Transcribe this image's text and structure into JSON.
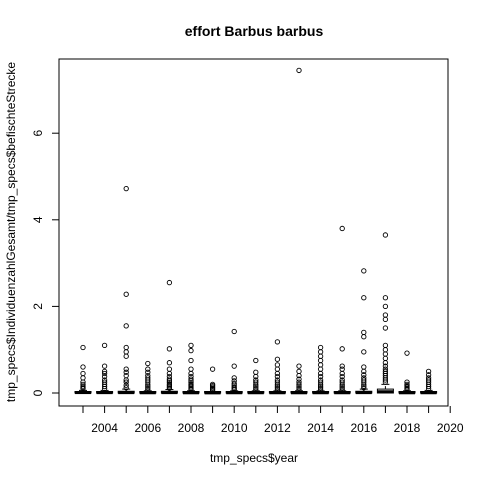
{
  "chart_data": {
    "type": "boxplot",
    "title": "effort Barbus barbus",
    "xlabel": "tmp_specs$year",
    "ylabel": "tmp_specs$IndividuenzahlGesamt/tmp_specs$befischteStrecke",
    "ylim": [
      -0.3,
      7.7
    ],
    "yticks": [
      0,
      2,
      4,
      6
    ],
    "xticks": [
      "2004",
      "2006",
      "2008",
      "2010",
      "2012",
      "2014",
      "2016",
      "2018",
      "2020"
    ],
    "grid": false,
    "legend": "none",
    "categories": [
      "2003",
      "2004",
      "2005",
      "2006",
      "2007",
      "2008",
      "2009",
      "2010",
      "2011",
      "2012",
      "2013",
      "2014",
      "2015",
      "2016",
      "2017",
      "2018",
      "2019",
      "2020"
    ],
    "boxes": [
      {
        "year": "2003",
        "q1": 0,
        "median": 0.01,
        "q3": 0.03,
        "whisker_high": 0.06,
        "outliers": [
          0.1,
          0.13,
          0.16,
          0.2,
          0.25,
          0.35,
          0.45,
          0.6,
          1.05
        ]
      },
      {
        "year": "2004",
        "q1": 0,
        "median": 0.01,
        "q3": 0.03,
        "whisker_high": 0.06,
        "outliers": [
          0.1,
          0.15,
          0.2,
          0.25,
          0.3,
          0.38,
          0.45,
          0.5,
          0.62,
          1.1
        ]
      },
      {
        "year": "2005",
        "q1": 0,
        "median": 0.01,
        "q3": 0.04,
        "whisker_high": 0.09,
        "outliers": [
          0.12,
          0.18,
          0.25,
          0.3,
          0.4,
          0.48,
          0.55,
          0.85,
          0.95,
          1.05,
          1.55,
          2.28,
          4.72
        ]
      },
      {
        "year": "2006",
        "q1": 0,
        "median": 0.005,
        "q3": 0.02,
        "whisker_high": 0.05,
        "outliers": [
          0.08,
          0.12,
          0.16,
          0.2,
          0.25,
          0.3,
          0.35,
          0.4,
          0.48,
          0.55,
          0.68
        ]
      },
      {
        "year": "2007",
        "q1": 0,
        "median": 0.01,
        "q3": 0.04,
        "whisker_high": 0.08,
        "outliers": [
          0.11,
          0.14,
          0.17,
          0.2,
          0.24,
          0.28,
          0.32,
          0.38,
          0.45,
          0.55,
          0.7,
          1.02,
          2.55
        ]
      },
      {
        "year": "2008",
        "q1": 0,
        "median": 0.005,
        "q3": 0.02,
        "whisker_high": 0.05,
        "outliers": [
          0.08,
          0.11,
          0.14,
          0.17,
          0.2,
          0.24,
          0.28,
          0.32,
          0.38,
          0.45,
          0.55,
          0.75,
          0.98,
          1.1
        ]
      },
      {
        "year": "2009",
        "q1": 0,
        "median": 0.002,
        "q3": 0.01,
        "whisker_high": 0.03,
        "outliers": [
          0.05,
          0.08,
          0.11,
          0.14,
          0.17,
          0.2,
          0.55
        ]
      },
      {
        "year": "2010",
        "q1": 0,
        "median": 0.005,
        "q3": 0.02,
        "whisker_high": 0.05,
        "outliers": [
          0.08,
          0.11,
          0.14,
          0.18,
          0.22,
          0.28,
          0.35,
          0.62,
          1.42
        ]
      },
      {
        "year": "2011",
        "q1": 0,
        "median": 0.005,
        "q3": 0.02,
        "whisker_high": 0.05,
        "outliers": [
          0.08,
          0.12,
          0.16,
          0.2,
          0.25,
          0.3,
          0.38,
          0.48,
          0.75
        ]
      },
      {
        "year": "2012",
        "q1": 0,
        "median": 0.005,
        "q3": 0.02,
        "whisker_high": 0.05,
        "outliers": [
          0.08,
          0.12,
          0.16,
          0.2,
          0.25,
          0.3,
          0.38,
          0.45,
          0.55,
          0.65,
          0.78,
          1.18
        ]
      },
      {
        "year": "2013",
        "q1": 0,
        "median": 0.005,
        "q3": 0.02,
        "whisker_high": 0.05,
        "outliers": [
          0.08,
          0.12,
          0.16,
          0.2,
          0.25,
          0.32,
          0.4,
          0.5,
          0.62,
          7.45
        ]
      },
      {
        "year": "2014",
        "q1": 0,
        "median": 0.005,
        "q3": 0.02,
        "whisker_high": 0.05,
        "outliers": [
          0.08,
          0.12,
          0.16,
          0.2,
          0.25,
          0.3,
          0.38,
          0.45,
          0.55,
          0.65,
          0.75,
          0.85,
          0.95,
          1.05
        ]
      },
      {
        "year": "2015",
        "q1": 0,
        "median": 0.005,
        "q3": 0.02,
        "whisker_high": 0.05,
        "outliers": [
          0.08,
          0.12,
          0.16,
          0.2,
          0.25,
          0.3,
          0.38,
          0.45,
          0.55,
          0.62,
          1.02,
          3.8
        ]
      },
      {
        "year": "2016",
        "q1": 0,
        "median": 0.01,
        "q3": 0.04,
        "whisker_high": 0.09,
        "outliers": [
          0.12,
          0.16,
          0.2,
          0.25,
          0.3,
          0.35,
          0.42,
          0.5,
          0.6,
          0.95,
          1.3,
          1.4,
          2.2,
          2.82
        ]
      },
      {
        "year": "2017",
        "q1": 0,
        "median": 0.03,
        "q3": 0.09,
        "whisker_high": 0.2,
        "outliers": [
          0.25,
          0.3,
          0.35,
          0.4,
          0.45,
          0.5,
          0.55,
          0.62,
          0.7,
          0.8,
          0.9,
          1.0,
          1.1,
          1.5,
          1.7,
          1.8,
          2.0,
          2.2,
          3.65
        ]
      },
      {
        "year": "2018",
        "q1": 0,
        "median": 0.005,
        "q3": 0.02,
        "whisker_high": 0.05,
        "outliers": [
          0.08,
          0.11,
          0.14,
          0.17,
          0.2,
          0.25,
          0.92
        ]
      },
      {
        "year": "2019",
        "q1": 0,
        "median": 0.005,
        "q3": 0.02,
        "whisker_high": 0.06,
        "outliers": [
          0.1,
          0.15,
          0.2,
          0.25,
          0.3,
          0.35,
          0.42,
          0.5
        ]
      }
    ]
  }
}
